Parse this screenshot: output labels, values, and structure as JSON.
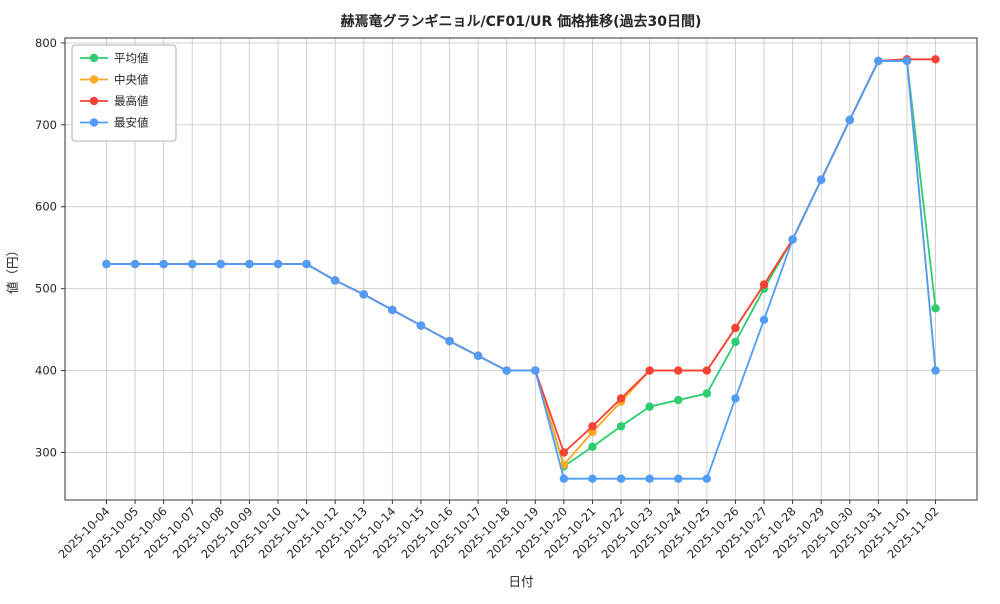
{
  "chart_data": {
    "type": "line",
    "title": "赫焉竜グランギニョル/CF01/UR 価格推移(過去30日間)",
    "xlabel": "日付",
    "ylabel": "値（円）",
    "ylim": [
      242,
      806
    ],
    "yticks": [
      300,
      400,
      500,
      600,
      700,
      800
    ],
    "grid": true,
    "legend_position": "upper left",
    "categories": [
      "2025-10-04",
      "2025-10-05",
      "2025-10-06",
      "2025-10-07",
      "2025-10-08",
      "2025-10-09",
      "2025-10-10",
      "2025-10-11",
      "2025-10-12",
      "2025-10-13",
      "2025-10-14",
      "2025-10-15",
      "2025-10-16",
      "2025-10-17",
      "2025-10-18",
      "2025-10-19",
      "2025-10-20",
      "2025-10-21",
      "2025-10-22",
      "2025-10-23",
      "2025-10-24",
      "2025-10-25",
      "2025-10-26",
      "2025-10-27",
      "2025-10-28",
      "2025-10-29",
      "2025-10-30",
      "2025-10-31",
      "2025-11-01",
      "2025-11-02"
    ],
    "series": [
      {
        "name": "平均値",
        "color": "#2ecc71",
        "values": [
          530,
          530,
          530,
          530,
          530,
          530,
          530,
          530,
          510,
          493,
          474,
          455,
          436,
          418,
          400,
          400,
          283,
          307,
          332,
          356,
          364,
          372,
          435,
          500,
          560,
          633,
          706,
          778,
          778,
          476
        ]
      },
      {
        "name": "中央値",
        "color": "#ffa726",
        "values": [
          530,
          530,
          530,
          530,
          530,
          530,
          530,
          530,
          510,
          493,
          474,
          455,
          436,
          418,
          400,
          400,
          285,
          325,
          362,
          400,
          400,
          400,
          452,
          505,
          560,
          633,
          706,
          778,
          780,
          400
        ]
      },
      {
        "name": "最高値",
        "color": "#f44336",
        "values": [
          530,
          530,
          530,
          530,
          530,
          530,
          530,
          530,
          510,
          493,
          474,
          455,
          436,
          418,
          400,
          400,
          300,
          332,
          366,
          400,
          400,
          400,
          452,
          505,
          560,
          633,
          706,
          778,
          780,
          780
        ]
      },
      {
        "name": "最安値",
        "color": "#4f9cf9",
        "values": [
          530,
          530,
          530,
          530,
          530,
          530,
          530,
          530,
          510,
          493,
          474,
          455,
          436,
          418,
          400,
          400,
          268,
          268,
          268,
          268,
          268,
          268,
          366,
          462,
          560,
          633,
          706,
          778,
          778,
          400
        ]
      }
    ]
  }
}
